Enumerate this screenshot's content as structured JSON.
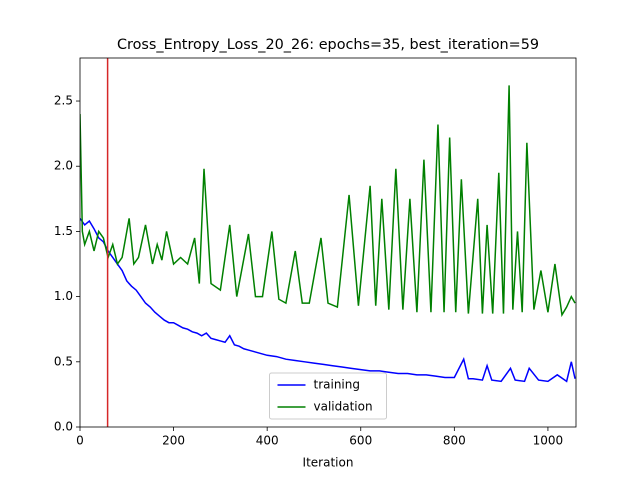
{
  "chart_data": {
    "type": "line",
    "title": "Cross_Entropy_Loss_20_26: epochs=35, best_iteration=59",
    "x_label": "Iteration",
    "xlim": [
      0,
      1060
    ],
    "ylim": [
      0,
      2.83
    ],
    "xticks": [
      0,
      200,
      400,
      600,
      800,
      1000
    ],
    "yticks": [
      {
        "value": 0,
        "label": "0.0"
      },
      0.5,
      {
        "value": 1,
        "label": "1.0"
      },
      1.5,
      {
        "value": 2,
        "label": "2.0"
      },
      2.5
    ],
    "vline_x": 59,
    "vline_color": "#d62728",
    "legend": "lower center",
    "series": [
      {
        "name": "training",
        "color": "#0000ff",
        "x": [
          0,
          10,
          20,
          30,
          40,
          50,
          60,
          70,
          80,
          90,
          100,
          110,
          120,
          130,
          140,
          150,
          160,
          170,
          180,
          190,
          200,
          210,
          220,
          230,
          240,
          250,
          260,
          270,
          280,
          290,
          300,
          310,
          320,
          330,
          340,
          350,
          360,
          380,
          400,
          420,
          440,
          460,
          480,
          500,
          520,
          540,
          560,
          580,
          600,
          620,
          640,
          660,
          680,
          700,
          720,
          740,
          760,
          780,
          800,
          820,
          830,
          840,
          860,
          870,
          880,
          900,
          920,
          930,
          950,
          960,
          980,
          1000,
          1020,
          1040,
          1050,
          1058
        ],
        "values": [
          1.6,
          1.55,
          1.58,
          1.52,
          1.45,
          1.42,
          1.35,
          1.3,
          1.25,
          1.2,
          1.12,
          1.08,
          1.05,
          1.0,
          0.95,
          0.92,
          0.88,
          0.85,
          0.82,
          0.8,
          0.8,
          0.78,
          0.76,
          0.75,
          0.73,
          0.72,
          0.7,
          0.72,
          0.68,
          0.67,
          0.66,
          0.65,
          0.7,
          0.63,
          0.62,
          0.6,
          0.59,
          0.57,
          0.55,
          0.54,
          0.52,
          0.51,
          0.5,
          0.49,
          0.48,
          0.47,
          0.46,
          0.45,
          0.44,
          0.43,
          0.43,
          0.42,
          0.41,
          0.41,
          0.4,
          0.4,
          0.39,
          0.38,
          0.38,
          0.52,
          0.37,
          0.37,
          0.36,
          0.47,
          0.36,
          0.35,
          0.45,
          0.36,
          0.35,
          0.45,
          0.36,
          0.35,
          0.4,
          0.35,
          0.5,
          0.37
        ]
      },
      {
        "name": "validation",
        "color": "#008000",
        "x": [
          0,
          5,
          10,
          20,
          30,
          40,
          50,
          60,
          70,
          80,
          90,
          100,
          105,
          115,
          125,
          140,
          155,
          165,
          175,
          185,
          200,
          215,
          230,
          245,
          255,
          265,
          280,
          300,
          320,
          335,
          360,
          375,
          390,
          410,
          425,
          440,
          460,
          475,
          490,
          515,
          530,
          550,
          575,
          595,
          620,
          632,
          645,
          660,
          675,
          690,
          705,
          720,
          735,
          750,
          765,
          778,
          790,
          803,
          815,
          830,
          850,
          860,
          870,
          882,
          895,
          905,
          917,
          925,
          935,
          945,
          955,
          970,
          985,
          1000,
          1015,
          1030,
          1040,
          1050,
          1058
        ],
        "values": [
          2.4,
          1.5,
          1.4,
          1.5,
          1.35,
          1.5,
          1.45,
          1.3,
          1.4,
          1.25,
          1.3,
          1.5,
          1.6,
          1.25,
          1.3,
          1.55,
          1.25,
          1.4,
          1.28,
          1.5,
          1.25,
          1.3,
          1.25,
          1.45,
          1.1,
          1.98,
          1.1,
          1.05,
          1.55,
          1.0,
          1.48,
          1.0,
          1.0,
          1.5,
          0.98,
          0.95,
          1.35,
          0.95,
          0.95,
          1.45,
          0.95,
          0.92,
          1.78,
          0.93,
          1.85,
          0.93,
          1.75,
          0.9,
          1.98,
          0.9,
          1.75,
          0.88,
          2.05,
          0.88,
          2.32,
          0.88,
          2.22,
          0.88,
          1.9,
          0.87,
          1.75,
          0.87,
          1.55,
          0.87,
          1.95,
          0.87,
          2.62,
          0.9,
          1.5,
          0.88,
          2.18,
          0.9,
          1.2,
          0.88,
          1.25,
          0.86,
          0.92,
          1.0,
          0.95
        ]
      }
    ]
  }
}
